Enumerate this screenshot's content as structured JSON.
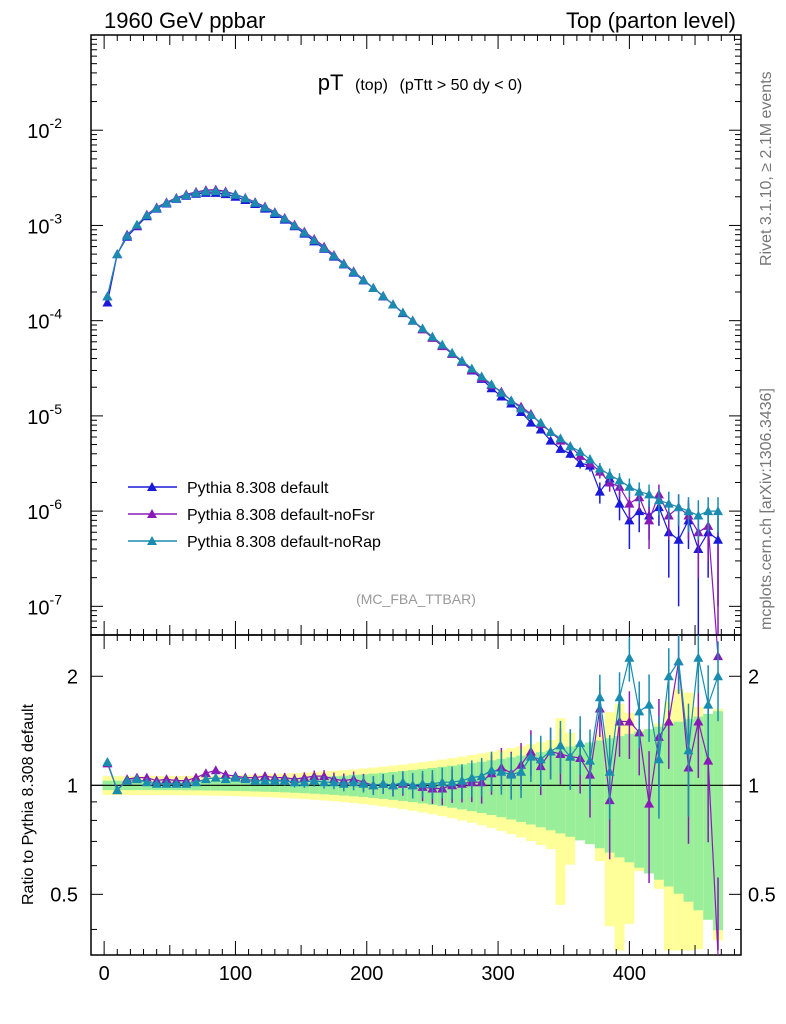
{
  "header": {
    "left": "1960 GeV ppbar",
    "right": "Top (parton level)"
  },
  "side_labels": {
    "rivet": "Rivet 3.1.10, ≥ 2.1M events",
    "mcplots": "mcplots.cern.ch [arXiv:1306.3436]"
  },
  "chart_data": [
    {
      "type": "line",
      "title": "pT (top) (pTtt > 50 dy < 0)",
      "title_main": "pT",
      "title_sub": "(top)",
      "title_cond": "(pTtt > 50 dy < 0)",
      "watermark": "(MC_FBA_TTBAR)",
      "yscale": "log",
      "ylim": [
        5e-08,
        0.1
      ],
      "xlim": [
        -10,
        485
      ],
      "yticks": [
        {
          "v": 1e-07,
          "exp": "-7"
        },
        {
          "v": 1e-06,
          "exp": "-6"
        },
        {
          "v": 1e-05,
          "exp": "-5"
        },
        {
          "v": 0.0001,
          "exp": "-4"
        },
        {
          "v": 0.001,
          "exp": "-3"
        },
        {
          "v": 0.01,
          "exp": "-2"
        }
      ],
      "legend_position": "bottom-left",
      "x": [
        2.5,
        10,
        17.5,
        25,
        32.5,
        40,
        47.5,
        55,
        62.5,
        70,
        77.5,
        85,
        92.5,
        100,
        107.5,
        115,
        122.5,
        130,
        137.5,
        145,
        152.5,
        160,
        167.5,
        175,
        182.5,
        190,
        197.5,
        205,
        212.5,
        220,
        227.5,
        235,
        242.5,
        250,
        257.5,
        265,
        272.5,
        280,
        287.5,
        295,
        302.5,
        310,
        317.5,
        325,
        332.5,
        340,
        347.5,
        355,
        362.5,
        370,
        377.5,
        385,
        392.5,
        400,
        407.5,
        415,
        422.5,
        430,
        437.5,
        445,
        452.5,
        460,
        467.5
      ],
      "series": [
        {
          "name": "Pythia 8.308 default",
          "color": "#1a1ad8",
          "values": [
            0.000155,
            0.0005,
            0.00076,
            0.00098,
            0.00125,
            0.0015,
            0.0017,
            0.0019,
            0.00205,
            0.00215,
            0.0022,
            0.0022,
            0.00213,
            0.002,
            0.00185,
            0.00168,
            0.0015,
            0.00132,
            0.00115,
            0.00098,
            0.00082,
            0.00068,
            0.00057,
            0.00047,
            0.00039,
            0.00032,
            0.000265,
            0.00022,
            0.00018,
            0.000148,
            0.00012,
            0.0001,
            8.2e-05,
            6.7e-05,
            5.5e-05,
            4.5e-05,
            3.7e-05,
            3e-05,
            2.45e-05,
            1.95e-05,
            1.6e-05,
            1.35e-05,
            1.1e-05,
            8.5e-06,
            7.2e-06,
            5.5e-06,
            4.5e-06,
            4e-06,
            3.2e-06,
            3e-06,
            1.6e-06,
            2.2e-06,
            1.2e-06,
            8e-07,
            1e-06,
            9e-07,
            1.1e-06,
            6e-07,
            5e-07,
            8e-07,
            4e-07,
            6e-07,
            5e-07
          ],
          "errors": [
            1e-05,
            1e-05,
            1e-05,
            1e-05,
            1e-05,
            1e-05,
            1e-05,
            1e-05,
            1e-05,
            1e-05,
            1e-05,
            1e-05,
            1e-05,
            1e-05,
            1e-05,
            1e-05,
            1e-05,
            1e-05,
            1e-05,
            1e-05,
            1e-05,
            1e-05,
            1e-05,
            1e-05,
            1e-05,
            1e-05,
            5e-06,
            5e-06,
            4e-06,
            4e-06,
            3e-06,
            3e-06,
            2e-06,
            2e-06,
            1.5e-06,
            1.5e-06,
            1.2e-06,
            1e-06,
            9e-07,
            8e-07,
            7e-07,
            6e-07,
            5e-07,
            5e-07,
            4e-07,
            4e-07,
            4e-07,
            4e-07,
            4e-07,
            4e-07,
            4e-07,
            4e-07,
            4e-07,
            4e-07,
            4e-07,
            4e-07,
            4e-07,
            4e-07,
            4e-07,
            4e-07,
            4e-07,
            4e-07,
            4e-07
          ]
        },
        {
          "name": "Pythia 8.308 default-noFsr",
          "color": "#8a1ab8",
          "values": [
            0.00018,
            0.0005,
            0.0008,
            0.001,
            0.0013,
            0.00155,
            0.00175,
            0.00195,
            0.00212,
            0.00225,
            0.00235,
            0.00238,
            0.00228,
            0.00212,
            0.00195,
            0.00176,
            0.00158,
            0.00138,
            0.0012,
            0.00102,
            0.00086,
            0.00072,
            0.0006,
            0.00049,
            0.0004,
            0.00033,
            0.00027,
            0.00022,
            0.000182,
            0.000148,
            0.000121,
            0.0001,
            8.1e-05,
            6.6e-05,
            5.4e-05,
            4.5e-05,
            3.75e-05,
            3.05e-05,
            2.5e-05,
            2.1e-05,
            1.8e-05,
            1.45e-05,
            1.25e-05,
            1.05e-05,
            8.2e-06,
            6.8e-06,
            5.5e-06,
            4.8e-06,
            3.8e-06,
            3.2e-06,
            2.6e-06,
            2e-06,
            1.8e-06,
            1.2e-06,
            1.4e-06,
            8e-07,
            1.5e-06,
            9e-07,
            1.1e-06,
            9e-07,
            6e-07,
            7e-07,
            3e-08
          ],
          "errors": [
            1e-05,
            1e-05,
            1e-05,
            1e-05,
            1e-05,
            1e-05,
            1e-05,
            1e-05,
            1e-05,
            1e-05,
            1e-05,
            1e-05,
            1e-05,
            1e-05,
            1e-05,
            1e-05,
            1e-05,
            1e-05,
            1e-05,
            1e-05,
            1e-05,
            1e-05,
            1e-05,
            1e-05,
            1e-05,
            1e-05,
            5e-06,
            5e-06,
            4e-06,
            4e-06,
            3e-06,
            3e-06,
            2e-06,
            2e-06,
            1.5e-06,
            1.5e-06,
            1.2e-06,
            1e-06,
            9e-07,
            8e-07,
            7e-07,
            6e-07,
            5e-07,
            5e-07,
            4e-07,
            4e-07,
            4e-07,
            4e-07,
            4e-07,
            4e-07,
            4e-07,
            4e-07,
            4e-07,
            4e-07,
            4e-07,
            4e-07,
            4e-07,
            4e-07,
            4e-07,
            4e-07,
            4e-07,
            4e-07,
            4e-07
          ]
        },
        {
          "name": "Pythia 8.308 default-noRap",
          "color": "#1a8cb0",
          "values": [
            0.00018,
            0.0005,
            0.00078,
            0.00102,
            0.00128,
            0.00152,
            0.00172,
            0.00192,
            0.00208,
            0.0022,
            0.00228,
            0.0023,
            0.00222,
            0.0021,
            0.00193,
            0.00173,
            0.00155,
            0.00136,
            0.00118,
            0.001,
            0.00084,
            0.0007,
            0.00058,
            0.00048,
            0.000395,
            0.000325,
            0.000268,
            0.00022,
            0.000182,
            0.000148,
            0.000122,
            0.0001,
            8.3e-05,
            6.8e-05,
            5.6e-05,
            4.6e-05,
            3.8e-05,
            3.15e-05,
            2.6e-05,
            2.15e-05,
            1.75e-05,
            1.45e-05,
            1.2e-05,
            1.02e-05,
            8.5e-06,
            6.8e-06,
            5.8e-06,
            4.8e-06,
            4.2e-06,
            3.5e-06,
            2.8e-06,
            2.4e-06,
            2.1e-06,
            1.8e-06,
            1.6e-06,
            1.5e-06,
            1.3e-06,
            1.2e-06,
            1.1e-06,
            1e-06,
            9e-07,
            1e-06,
            1e-06
          ],
          "errors": [
            1e-05,
            1e-05,
            1e-05,
            1e-05,
            1e-05,
            1e-05,
            1e-05,
            1e-05,
            1e-05,
            1e-05,
            1e-05,
            1e-05,
            1e-05,
            1e-05,
            1e-05,
            1e-05,
            1e-05,
            1e-05,
            1e-05,
            1e-05,
            1e-05,
            1e-05,
            1e-05,
            1e-05,
            1e-05,
            1e-05,
            5e-06,
            5e-06,
            4e-06,
            4e-06,
            3e-06,
            3e-06,
            2e-06,
            2e-06,
            1.5e-06,
            1.5e-06,
            1.2e-06,
            1e-06,
            9e-07,
            8e-07,
            7e-07,
            6e-07,
            5e-07,
            5e-07,
            4e-07,
            4e-07,
            4e-07,
            4e-07,
            4e-07,
            4e-07,
            4e-07,
            4e-07,
            4e-07,
            4e-07,
            4e-07,
            4e-07,
            4e-07,
            4e-07,
            4e-07,
            4e-07,
            4e-07,
            4e-07,
            4e-07
          ]
        }
      ]
    },
    {
      "type": "line",
      "ylabel": "Ratio to Pythia 8.308 default",
      "yscale": "log",
      "ylim": [
        0.34,
        2.6
      ],
      "xlim": [
        -10,
        485
      ],
      "yticks": [
        0.5,
        1,
        2
      ],
      "xticks": [
        0,
        100,
        200,
        300,
        400
      ],
      "reference_line": 1,
      "band_colors": {
        "outer": "#ffff99",
        "inner": "#99ee99"
      },
      "series": [
        {
          "name": "Pythia 8.308 default-noFsr",
          "color": "#8a1ab8",
          "values": [
            1.15,
            0.97,
            1.04,
            1.05,
            1.05,
            1.03,
            1.04,
            1.03,
            1.03,
            1.05,
            1.08,
            1.1,
            1.07,
            1.06,
            1.05,
            1.05,
            1.06,
            1.05,
            1.05,
            1.04,
            1.05,
            1.06,
            1.06,
            1.04,
            1.03,
            1.04,
            1.02,
            1.0,
            1.01,
            1.0,
            1.01,
            1.0,
            0.99,
            0.98,
            0.98,
            1.0,
            1.01,
            1.02,
            1.02,
            1.08,
            1.12,
            1.08,
            1.14,
            1.24,
            1.13,
            1.24,
            1.22,
            1.2,
            1.19,
            1.07,
            1.63,
            0.91,
            1.5,
            1.5,
            1.4,
            0.89,
            1.36,
            1.5,
            2.2,
            1.12,
            1.5,
            1.17,
            0.06
          ]
        },
        {
          "name": "Pythia 8.308 default-noRap",
          "color": "#1a8cb0",
          "values": [
            1.16,
            0.97,
            1.03,
            1.04,
            1.02,
            1.01,
            1.01,
            1.01,
            1.01,
            1.02,
            1.04,
            1.05,
            1.04,
            1.05,
            1.04,
            1.03,
            1.03,
            1.03,
            1.03,
            1.02,
            1.02,
            1.03,
            1.02,
            1.02,
            1.01,
            1.02,
            1.01,
            1.0,
            1.01,
            1.0,
            1.02,
            1.0,
            1.01,
            1.01,
            1.02,
            1.02,
            1.03,
            1.05,
            1.06,
            1.1,
            1.09,
            1.07,
            1.09,
            1.2,
            1.18,
            1.24,
            1.29,
            1.2,
            1.31,
            1.17,
            1.75,
            1.09,
            1.75,
            2.25,
            1.6,
            1.67,
            1.18,
            2.0,
            2.2,
            1.25,
            2.25,
            1.67,
            2.0
          ]
        }
      ]
    }
  ]
}
